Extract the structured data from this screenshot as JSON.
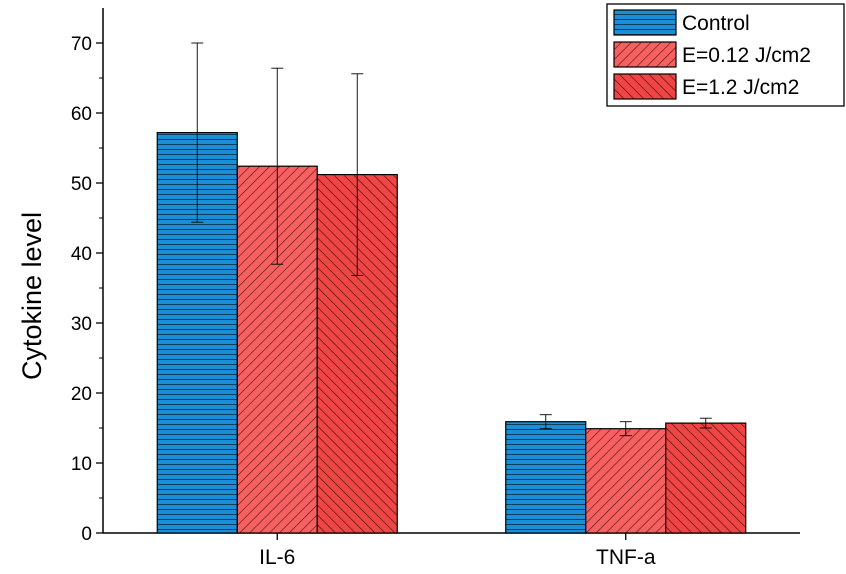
{
  "chart_data": {
    "type": "bar",
    "categories": [
      "IL-6",
      "TNF-a"
    ],
    "ylabel": "Cytokine level",
    "xlabel": "",
    "ylim": [
      0,
      75
    ],
    "yticks": [
      0,
      10,
      20,
      30,
      40,
      50,
      60,
      70
    ],
    "grid": false,
    "legend_position": "top-right",
    "series": [
      {
        "name": "Control",
        "values": [
          57.2,
          15.9
        ],
        "errors": [
          12.8,
          1.0
        ],
        "color": "#1a8fd8",
        "pattern": "horizontal"
      },
      {
        "name": "E=0.12 J/cm2",
        "values": [
          52.4,
          14.9
        ],
        "errors": [
          14.0,
          1.0
        ],
        "color": "#f76060",
        "pattern": "diagonal-up"
      },
      {
        "name": "E=1.2 J/cm2",
        "values": [
          51.2,
          15.7
        ],
        "errors": [
          14.4,
          0.7
        ],
        "color": "#f04545",
        "pattern": "diagonal-down"
      }
    ]
  }
}
